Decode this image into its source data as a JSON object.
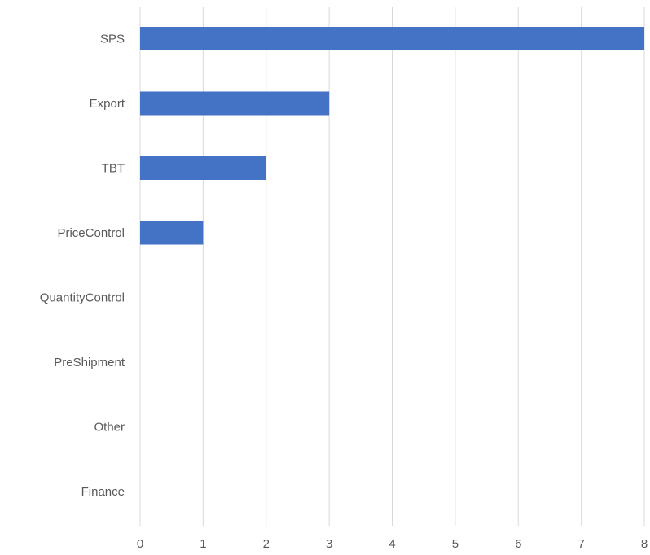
{
  "chart_data": {
    "type": "bar",
    "orientation": "horizontal",
    "categories": [
      "SPS",
      "Export",
      "TBT",
      "PriceControl",
      "QuantityControl",
      "PreShipment",
      "Other",
      "Finance"
    ],
    "values": [
      8,
      3,
      2,
      1,
      0,
      0,
      0,
      0
    ],
    "xlim": [
      0,
      8
    ],
    "xticks": [
      0,
      1,
      2,
      3,
      4,
      5,
      6,
      7,
      8
    ],
    "title": "",
    "xlabel": "",
    "ylabel": "",
    "grid": "vertical",
    "legend": "none",
    "bar_color": "#4472c4"
  }
}
